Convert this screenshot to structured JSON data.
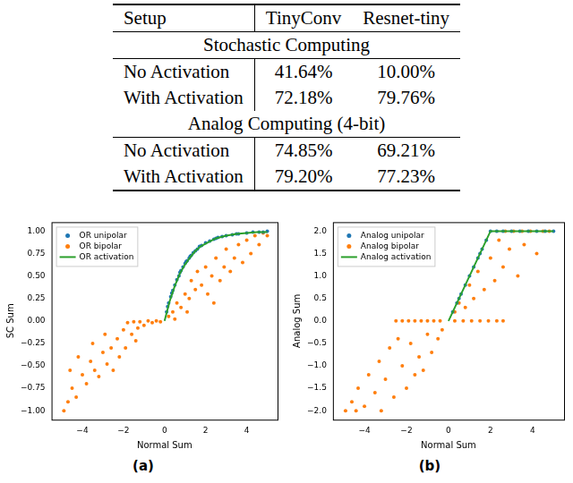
{
  "table": {
    "header": [
      "Setup",
      "TinyConv",
      "Resnet-tiny"
    ],
    "sections": [
      {
        "title": "Stochastic Computing",
        "rows": [
          [
            "No Activation",
            "41.64%",
            "10.00%"
          ],
          [
            "With Activation",
            "72.18%",
            "79.76%"
          ]
        ]
      },
      {
        "title": "Analog Computing (4-bit)",
        "rows": [
          [
            "No Activation",
            "74.85%",
            "69.21%"
          ],
          [
            "With Activation",
            "79.20%",
            "77.23%"
          ]
        ]
      }
    ]
  },
  "chart_data": [
    {
      "type": "scatter",
      "caption": "(a)",
      "x_label": "Normal Sum",
      "y_label": "SC Sum",
      "xlim": [
        -5.5,
        5.5
      ],
      "ylim": [
        -1.1,
        1.1
      ],
      "xticks": [
        {
          "value": -4,
          "label": "−4"
        },
        {
          "value": -2,
          "label": "−2"
        },
        0,
        2,
        4
      ],
      "yticks": [
        {
          "value": -1,
          "label": "−1.00"
        },
        {
          "value": -0.75,
          "label": "−0.75"
        },
        {
          "value": -0.5,
          "label": "−0.50"
        },
        {
          "value": -0.25,
          "label": "−0.25"
        },
        {
          "value": 0,
          "label": "0.00"
        },
        {
          "value": 0.25,
          "label": "0.25"
        },
        {
          "value": 0.5,
          "label": "0.50"
        },
        {
          "value": 0.75,
          "label": "0.75"
        },
        {
          "value": 1,
          "label": "1.00"
        }
      ],
      "legend": "upper left",
      "series": [
        {
          "name": "OR unipolar",
          "type": "scatter",
          "marker": "circle",
          "color": "#1f77b4",
          "x": [
            0.1,
            0.2,
            0.3,
            0.4,
            0.5,
            0.6,
            0.7,
            0.8,
            0.9,
            1.0,
            1.1,
            1.2,
            1.3,
            1.4,
            1.5,
            1.6,
            1.8,
            2.0,
            2.2,
            2.4,
            2.6,
            2.8,
            3.0,
            3.3,
            3.6,
            4.0,
            4.3,
            4.6,
            5.0,
            0.15,
            0.35,
            0.75,
            1.05,
            1.25,
            1.7,
            2.5,
            3.5,
            4.8
          ],
          "values": [
            0.1,
            0.2,
            0.27,
            0.34,
            0.4,
            0.46,
            0.5,
            0.56,
            0.6,
            0.64,
            0.67,
            0.7,
            0.73,
            0.76,
            0.78,
            0.8,
            0.84,
            0.87,
            0.89,
            0.91,
            0.93,
            0.94,
            0.95,
            0.96,
            0.97,
            0.98,
            0.99,
            0.99,
            1.0,
            0.16,
            0.31,
            0.54,
            0.66,
            0.72,
            0.83,
            0.92,
            0.97,
            0.99
          ]
        },
        {
          "name": "OR bipolar",
          "type": "scatter",
          "marker": "circle",
          "color": "#ff7f0e",
          "x": [
            -4.9,
            -4.7,
            -4.5,
            -4.3,
            -4.0,
            -3.8,
            -3.6,
            -3.4,
            -3.2,
            -3.0,
            -2.8,
            -2.6,
            -2.5,
            -2.3,
            -2.2,
            -2.0,
            -1.9,
            -1.8,
            -1.6,
            -1.5,
            -1.3,
            -1.2,
            -1.0,
            -0.8,
            -0.6,
            -0.4,
            -0.2,
            -3.5,
            -4.2,
            -2.9,
            -1.4,
            -4.6,
            0.2,
            0.4,
            0.6,
            0.8,
            1.0,
            1.2,
            1.3,
            1.5,
            1.6,
            1.8,
            2.0,
            2.1,
            2.3,
            2.5,
            2.7,
            2.9,
            3.0,
            3.2,
            3.4,
            3.6,
            3.8,
            4.0,
            4.2,
            4.4,
            4.6,
            4.8,
            5.0,
            0.5,
            1.1,
            2.4
          ],
          "values": [
            -1.0,
            -0.9,
            -0.75,
            -0.85,
            -0.6,
            -0.7,
            -0.45,
            -0.55,
            -0.62,
            -0.35,
            -0.48,
            -0.3,
            -0.55,
            -0.2,
            -0.4,
            -0.1,
            -0.3,
            -0.02,
            -0.15,
            -0.01,
            -0.08,
            -0.01,
            -0.05,
            0.0,
            -0.02,
            0.0,
            -0.01,
            -0.25,
            -0.4,
            -0.15,
            -0.22,
            -0.55,
            0.05,
            0.1,
            0.2,
            0.15,
            0.3,
            0.25,
            0.45,
            0.35,
            0.55,
            0.4,
            0.6,
            0.3,
            0.5,
            0.7,
            0.45,
            0.6,
            0.8,
            0.55,
            0.7,
            0.85,
            0.65,
            0.9,
            0.75,
            0.95,
            0.85,
            0.98,
            0.95,
            0.02,
            0.1,
            0.2
          ]
        },
        {
          "name": "OR activation",
          "type": "line",
          "line_style": "solid",
          "color": "#2ca02c",
          "x": [
            0,
            0.25,
            0.5,
            0.75,
            1,
            1.25,
            1.5,
            1.75,
            2,
            2.5,
            3,
            3.5,
            4,
            4.5,
            5
          ],
          "values": [
            0,
            0.22,
            0.39,
            0.53,
            0.63,
            0.71,
            0.78,
            0.83,
            0.86,
            0.92,
            0.95,
            0.97,
            0.98,
            0.99,
            0.99
          ]
        }
      ]
    },
    {
      "type": "scatter",
      "caption": "(b)",
      "x_label": "Normal Sum",
      "y_label": "Analog Sum",
      "xlim": [
        -5.5,
        5.5
      ],
      "ylim": [
        -2.2,
        2.2
      ],
      "xticks": [
        {
          "value": -4,
          "label": "−4"
        },
        {
          "value": -2,
          "label": "−2"
        },
        0,
        2,
        4
      ],
      "yticks": [
        {
          "value": -2,
          "label": "−2.0"
        },
        {
          "value": -1.5,
          "label": "−1.5"
        },
        {
          "value": -1,
          "label": "−1.0"
        },
        {
          "value": -0.5,
          "label": "−0.5"
        },
        {
          "value": 0,
          "label": "0.0"
        },
        0.5,
        {
          "value": 1,
          "label": "1.0"
        },
        1.5,
        {
          "value": 2,
          "label": "2.0"
        }
      ],
      "legend": "upper left",
      "series": [
        {
          "name": "Analog unipolar",
          "type": "scatter",
          "marker": "circle",
          "color": "#1f77b4",
          "x": [
            0.2,
            0.4,
            0.6,
            0.8,
            1.0,
            1.2,
            1.4,
            1.6,
            1.8,
            2.0,
            2.3,
            2.6,
            3.0,
            3.4,
            3.8,
            4.2,
            4.6,
            5.0,
            0.5,
            1.5
          ],
          "values": [
            0.2,
            0.4,
            0.6,
            0.8,
            1.0,
            1.2,
            1.4,
            1.6,
            1.8,
            2.0,
            2.0,
            2.0,
            2.0,
            2.0,
            2.0,
            2.0,
            2.0,
            2.0,
            0.5,
            1.5
          ]
        },
        {
          "name": "Analog bipolar",
          "type": "scatter",
          "marker": "circle",
          "color": "#ff7f0e",
          "x": [
            -2.5,
            -2.2,
            -1.9,
            -1.6,
            -1.3,
            -1.0,
            -0.7,
            -0.4,
            0.3,
            0.7,
            1.1,
            1.5,
            1.9,
            2.3,
            2.6,
            -4.9,
            -4.6,
            -4.3,
            -4.0,
            -3.8,
            -3.5,
            -3.3,
            -3.0,
            -2.8,
            -2.6,
            -2.4,
            -2.2,
            -2.0,
            -1.8,
            -1.6,
            -1.4,
            -1.2,
            -1.0,
            -0.8,
            -0.5,
            -0.3,
            -4.4,
            -3.2,
            0.3,
            0.5,
            0.8,
            1.0,
            1.2,
            1.4,
            1.7,
            2.0,
            2.2,
            2.4,
            2.6,
            2.9,
            3.1,
            3.3,
            3.6,
            3.9,
            4.2,
            4.5,
            4.8,
            2.7,
            3.5
          ],
          "values": [
            0,
            0,
            0,
            0,
            0,
            0,
            0,
            0,
            0,
            0,
            0,
            0,
            0,
            0,
            0,
            -2.0,
            -1.8,
            -1.5,
            -1.9,
            -1.2,
            -1.6,
            -0.9,
            -1.3,
            -0.6,
            -1.7,
            -0.4,
            -1.0,
            -1.5,
            -0.5,
            -1.2,
            -0.8,
            -1.1,
            -0.3,
            -0.7,
            -0.4,
            -0.2,
            -2.0,
            -2.0,
            0.2,
            0.4,
            0.3,
            0.8,
            0.5,
            1.1,
            0.7,
            1.4,
            0.9,
            1.8,
            1.2,
            1.6,
            2.0,
            1.0,
            1.7,
            2.0,
            1.5,
            2.0,
            2.0,
            2.0,
            2.0
          ]
        },
        {
          "name": "Analog activation",
          "type": "line",
          "line_style": "solid",
          "color": "#2ca02c",
          "x": [
            0,
            2,
            5
          ],
          "values": [
            0,
            2,
            2
          ]
        }
      ]
    }
  ]
}
